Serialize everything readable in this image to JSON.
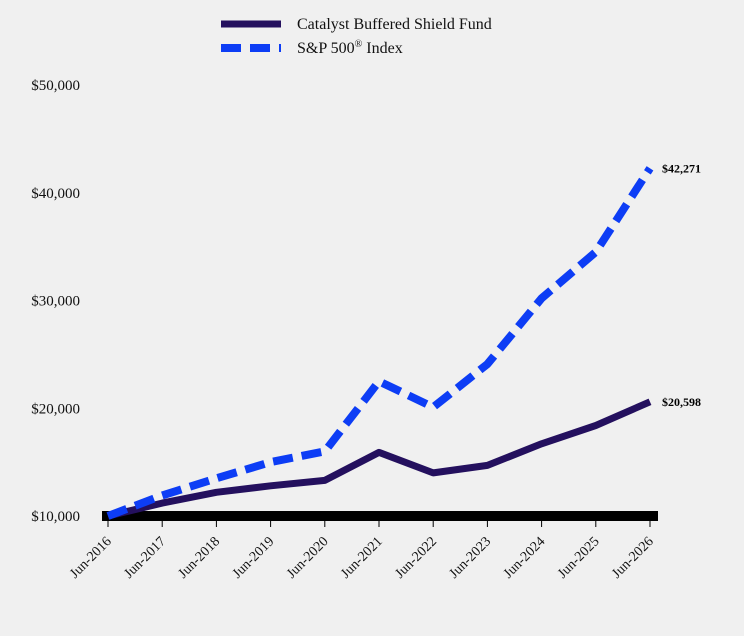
{
  "chart_data": {
    "type": "line",
    "categories": [
      "Jun-2016",
      "Jun-2017",
      "Jun-2018",
      "Jun-2019",
      "Jun-2020",
      "Jun-2021",
      "Jun-2022",
      "Jun-2023",
      "Jun-2024",
      "Jun-2025",
      "Jun-2026"
    ],
    "series": [
      {
        "name": "Catalyst Buffered Shield Fund",
        "values": [
          10000,
          11200,
          12200,
          12800,
          13300,
          15900,
          14000,
          14700,
          16700,
          18400,
          20598
        ],
        "color": "#24105e",
        "style": "solid",
        "end_label": "$20,598"
      },
      {
        "name": "S&P 500",
        "name_superscript": "®",
        "name_suffix": " Index",
        "values": [
          10000,
          11900,
          13500,
          15000,
          16000,
          22500,
          20100,
          24100,
          30200,
          34500,
          42271
        ],
        "color": "#0d3df5",
        "style": "dashed",
        "end_label": "$42,271"
      }
    ],
    "y_ticks": [
      {
        "value": 10000,
        "label": "$10,000"
      },
      {
        "value": 20000,
        "label": "$20,000"
      },
      {
        "value": 30000,
        "label": "$30,000"
      },
      {
        "value": 40000,
        "label": "$40,000"
      },
      {
        "value": 50000,
        "label": "$50,000"
      }
    ],
    "ylim": [
      10000,
      50000
    ],
    "legend_position": "top",
    "grid": false
  }
}
